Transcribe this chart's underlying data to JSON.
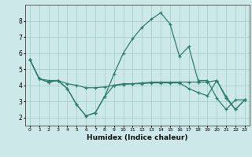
{
  "xlabel": "Humidex (Indice chaleur)",
  "x": [
    0,
    1,
    2,
    3,
    4,
    5,
    6,
    7,
    8,
    9,
    10,
    11,
    12,
    13,
    14,
    15,
    16,
    17,
    18,
    19,
    20,
    21,
    22,
    23
  ],
  "line1": [
    5.6,
    4.4,
    4.2,
    4.3,
    3.8,
    2.8,
    2.1,
    2.3,
    3.3,
    4.7,
    6.0,
    6.9,
    7.6,
    8.1,
    8.5,
    7.8,
    5.8,
    6.4,
    4.3,
    4.3,
    3.2,
    2.5,
    3.1,
    3.1
  ],
  "line2": [
    5.6,
    4.4,
    4.3,
    4.3,
    4.1,
    4.0,
    3.85,
    3.85,
    3.9,
    4.0,
    4.05,
    4.1,
    4.15,
    4.2,
    4.2,
    4.2,
    4.2,
    4.2,
    4.2,
    4.2,
    4.3,
    3.3,
    2.5,
    3.1
  ],
  "line3": [
    5.6,
    4.4,
    4.2,
    4.3,
    3.8,
    2.8,
    2.1,
    2.3,
    3.3,
    4.0,
    4.1,
    4.1,
    4.1,
    4.15,
    4.15,
    4.15,
    4.15,
    3.8,
    3.55,
    3.35,
    4.3,
    3.2,
    2.5,
    3.1
  ],
  "line_color": "#2e7d6e",
  "bg_color": "#cce8e8",
  "grid_color": "#aacfcf",
  "ylim": [
    1.5,
    9.0
  ],
  "xlim": [
    -0.5,
    23.5
  ],
  "yticks": [
    2,
    3,
    4,
    5,
    6,
    7,
    8
  ],
  "xticks": [
    0,
    1,
    2,
    3,
    4,
    5,
    6,
    7,
    8,
    9,
    10,
    11,
    12,
    13,
    14,
    15,
    16,
    17,
    18,
    19,
    20,
    21,
    22,
    23
  ]
}
